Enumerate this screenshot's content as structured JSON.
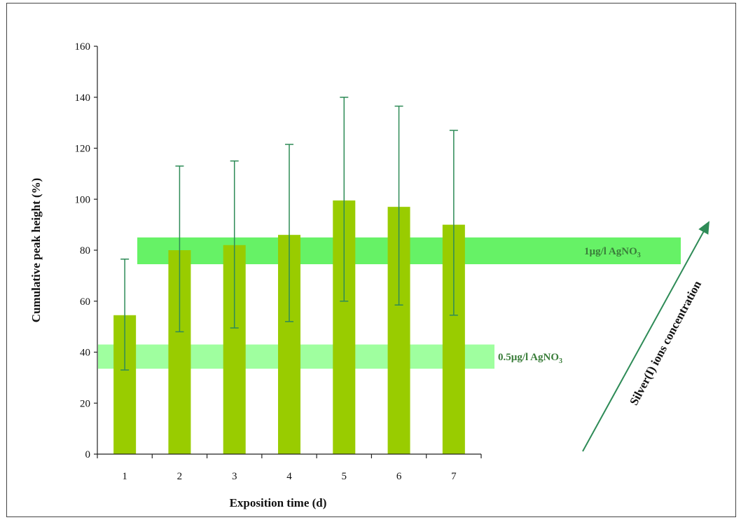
{
  "chart_data": {
    "type": "bar",
    "categories": [
      "1",
      "2",
      "3",
      "4",
      "5",
      "6",
      "7"
    ],
    "series": [
      {
        "values": [
          54.5,
          80,
          82,
          86,
          99.5,
          97,
          90
        ],
        "error_upper": [
          76.5,
          113,
          115,
          121.5,
          140,
          136.5,
          127
        ],
        "error_lower": [
          33,
          48,
          49.5,
          52,
          60,
          58.5,
          54.5
        ]
      }
    ],
    "xlabel": "Exposition time (d)",
    "ylabel": "Cumulative peak height (%)",
    "ylim": [
      0,
      160
    ],
    "yticks": [
      "0",
      "20",
      "40",
      "60",
      "80",
      "100",
      "120",
      "140",
      "160"
    ],
    "grid": false,
    "bar_color": "#99cc00",
    "error_color": "#2e8b57",
    "bands": [
      {
        "label_main": "0.5µg/l AgNO",
        "label_sub": "3",
        "y_from": 33.5,
        "y_to": 43,
        "color": "#7fff7f"
      },
      {
        "label_main": "1µg/l AgNO",
        "label_sub": "3",
        "y_from": 74.5,
        "y_to": 85,
        "color": "#33ee33"
      }
    ],
    "annotation_arrow": {
      "label": "Silver(I) ions concentration",
      "color": "#2e8b57"
    }
  }
}
